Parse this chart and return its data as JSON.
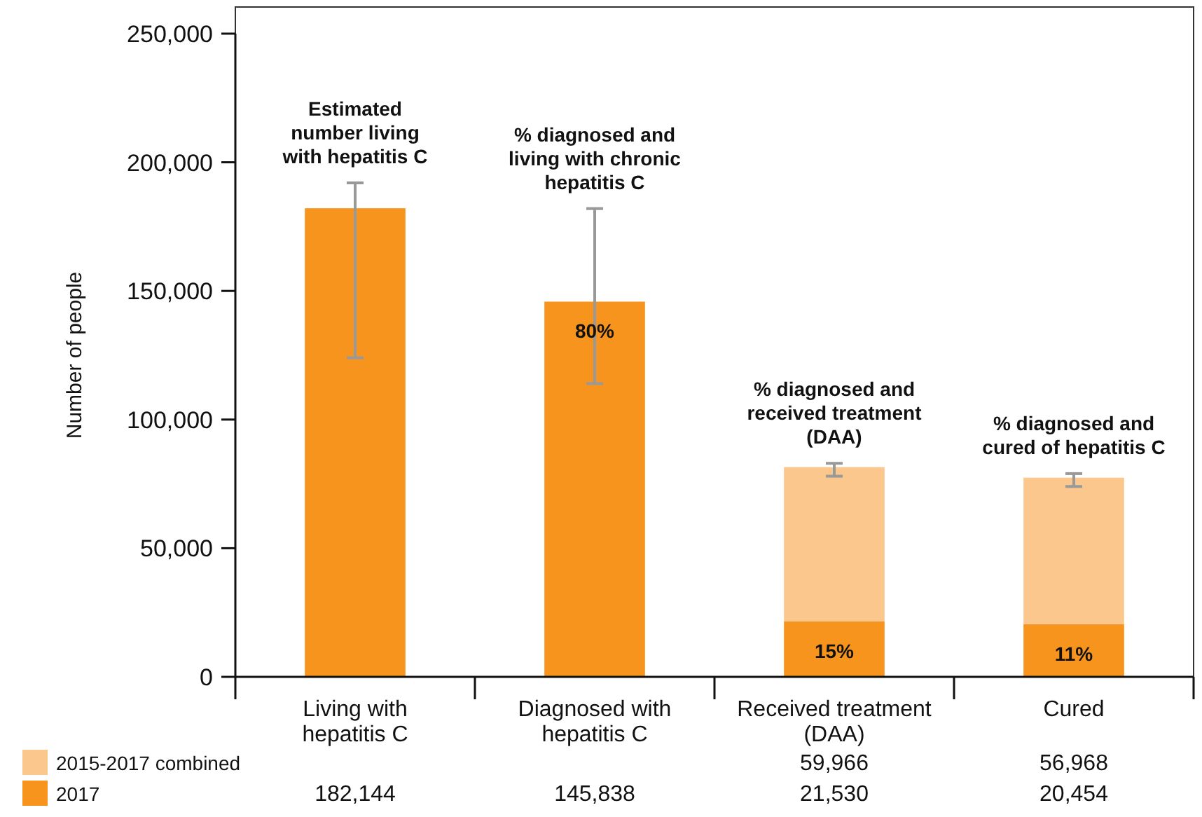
{
  "chart_data": {
    "type": "bar",
    "stacked": true,
    "ylabel": "Number of people",
    "categories": [
      "Living with\nhepatitis C",
      "Diagnosed with\nhepatitis C",
      "Received treatment\n(DAA)",
      "Cured"
    ],
    "series": [
      {
        "name": "2017",
        "color": "#f7941d",
        "values": [
          182144,
          145838,
          21530,
          20454
        ],
        "value_labels": [
          "182,144",
          "145,838",
          "21,530",
          "20,454"
        ],
        "errors": [
          [
            124000,
            192000
          ],
          [
            114000,
            182000
          ],
          null,
          null
        ]
      },
      {
        "name": "2015-2017 combined",
        "color": "#fbc78d",
        "values": [
          null,
          null,
          59966,
          56968
        ],
        "value_labels": [
          null,
          null,
          "59,966",
          "56,968"
        ],
        "errors": [
          null,
          null,
          [
            78000,
            83000
          ],
          [
            74000,
            79000
          ]
        ]
      }
    ],
    "ylim": [
      0,
      250000
    ],
    "yticks": [
      {
        "value": 0,
        "label": "0"
      },
      {
        "value": 50000,
        "label": "50,000"
      },
      {
        "value": 100000,
        "label": "100,000"
      },
      {
        "value": 150000,
        "label": "150,000"
      },
      {
        "value": 200000,
        "label": "200,000"
      },
      {
        "value": 250000,
        "label": "250,000"
      }
    ],
    "legend": "bottom left",
    "grid": false,
    "annotations": [
      "Estimated\nnumber living\nwith hepatitis C",
      "% diagnosed and\nliving with chronic\nhepatitis C",
      "% diagnosed and\nreceived treatment\n(DAA)",
      "% diagnosed and\ncured of hepatitis C",
      {
        "text": "80%",
        "x": "Diagnosed with\nhepatitis C",
        "y": 145838
      },
      {
        "text": "15%",
        "x": "Received treatment\n(DAA)",
        "y": 21530
      },
      {
        "text": "11%",
        "x": "Cured",
        "y": 20454
      }
    ]
  }
}
